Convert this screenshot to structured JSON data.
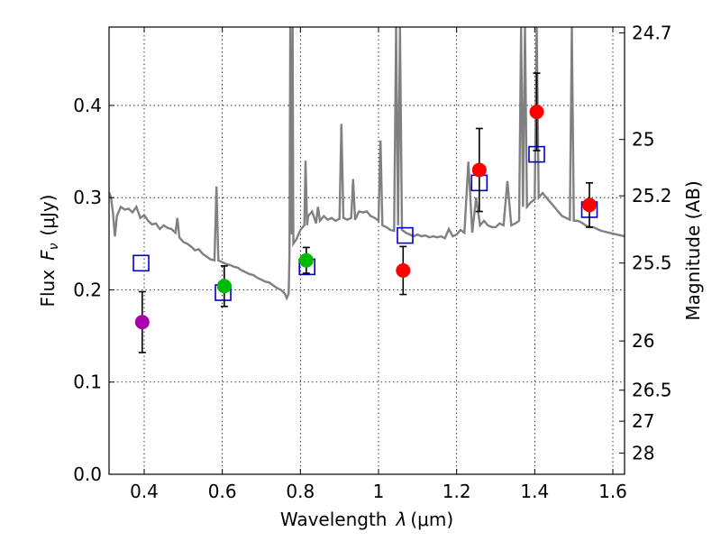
{
  "chart_data": {
    "type": "scatter",
    "title": "",
    "xlabel": {
      "text": "Wavelength",
      "symbol": "λ",
      "unit": "(μm)"
    },
    "ylabel": {
      "text": "Flux",
      "symbol": "F",
      "subscript": "ν",
      "unit": "(μJy)"
    },
    "ylabel_right": "Magnitude (AB)",
    "xlim": [
      0.31,
      1.63
    ],
    "ylim": [
      0.0,
      0.485
    ],
    "grid": true,
    "x_ticks": [
      {
        "value": 0.4,
        "label": "0.4"
      },
      {
        "value": 0.6,
        "label": "0.6"
      },
      {
        "value": 0.8,
        "label": "0.8"
      },
      {
        "value": 1.0,
        "label": "1"
      },
      {
        "value": 1.2,
        "label": "1.2"
      },
      {
        "value": 1.4,
        "label": "1.4"
      },
      {
        "value": 1.6,
        "label": "1.6"
      }
    ],
    "y_ticks": [
      {
        "value": 0.0,
        "label": "0.0"
      },
      {
        "value": 0.1,
        "label": "0.1"
      },
      {
        "value": 0.2,
        "label": "0.2"
      },
      {
        "value": 0.3,
        "label": "0.3"
      },
      {
        "value": 0.4,
        "label": "0.4"
      }
    ],
    "right_ticks": [
      {
        "value": 24.7,
        "label": "24.7"
      },
      {
        "value": 25,
        "label": "25"
      },
      {
        "value": 25.2,
        "label": "25.2"
      },
      {
        "value": 25.5,
        "label": "25.5"
      },
      {
        "value": 26,
        "label": "26"
      },
      {
        "value": 26.5,
        "label": "26.5"
      },
      {
        "value": 27,
        "label": "27"
      },
      {
        "value": 28,
        "label": "28"
      }
    ],
    "observed": [
      {
        "x": 0.395,
        "y": 0.165,
        "err": 0.033,
        "color": "#aa00aa"
      },
      {
        "x": 0.605,
        "y": 0.204,
        "err": 0.022,
        "color": "#00bb00"
      },
      {
        "x": 0.815,
        "y": 0.232,
        "err": 0.014,
        "color": "#00bb00"
      },
      {
        "x": 1.063,
        "y": 0.221,
        "err": 0.026,
        "color": "#ff0000"
      },
      {
        "x": 1.258,
        "y": 0.33,
        "err": 0.045,
        "color": "#ff0000"
      },
      {
        "x": 1.405,
        "y": 0.393,
        "err": 0.042,
        "color": "#ff0000"
      },
      {
        "x": 1.54,
        "y": 0.292,
        "err": 0.024,
        "color": "#ff0000"
      }
    ],
    "model_photometry": {
      "color": "#0000cc",
      "points": [
        {
          "x": 0.392,
          "y": 0.229
        },
        {
          "x": 0.602,
          "y": 0.197
        },
        {
          "x": 0.817,
          "y": 0.225
        },
        {
          "x": 1.068,
          "y": 0.259
        },
        {
          "x": 1.258,
          "y": 0.316
        },
        {
          "x": 1.405,
          "y": 0.347
        },
        {
          "x": 1.54,
          "y": 0.287
        }
      ]
    },
    "sed_model": {
      "color": "#808080",
      "points": [
        [
          0.31,
          0.306
        ],
        [
          0.315,
          0.3
        ],
        [
          0.32,
          0.284
        ],
        [
          0.325,
          0.258
        ],
        [
          0.33,
          0.28
        ],
        [
          0.34,
          0.29
        ],
        [
          0.35,
          0.287
        ],
        [
          0.36,
          0.288
        ],
        [
          0.37,
          0.284
        ],
        [
          0.38,
          0.29
        ],
        [
          0.39,
          0.278
        ],
        [
          0.4,
          0.281
        ],
        [
          0.41,
          0.275
        ],
        [
          0.42,
          0.271
        ],
        [
          0.43,
          0.272
        ],
        [
          0.44,
          0.266
        ],
        [
          0.45,
          0.27
        ],
        [
          0.46,
          0.267
        ],
        [
          0.47,
          0.266
        ],
        [
          0.48,
          0.262
        ],
        [
          0.485,
          0.278
        ],
        [
          0.49,
          0.257
        ],
        [
          0.5,
          0.252
        ],
        [
          0.51,
          0.25
        ],
        [
          0.52,
          0.247
        ],
        [
          0.53,
          0.243
        ],
        [
          0.54,
          0.244
        ],
        [
          0.55,
          0.239
        ],
        [
          0.56,
          0.236
        ],
        [
          0.57,
          0.233
        ],
        [
          0.58,
          0.232
        ],
        [
          0.585,
          0.312
        ],
        [
          0.59,
          0.232
        ],
        [
          0.6,
          0.23
        ],
        [
          0.61,
          0.228
        ],
        [
          0.62,
          0.227
        ],
        [
          0.63,
          0.225
        ],
        [
          0.64,
          0.224
        ],
        [
          0.65,
          0.221
        ],
        [
          0.66,
          0.219
        ],
        [
          0.67,
          0.217
        ],
        [
          0.68,
          0.216
        ],
        [
          0.69,
          0.213
        ],
        [
          0.7,
          0.211
        ],
        [
          0.71,
          0.209
        ],
        [
          0.72,
          0.208
        ],
        [
          0.73,
          0.205
        ],
        [
          0.74,
          0.202
        ],
        [
          0.75,
          0.2
        ],
        [
          0.76,
          0.196
        ],
        [
          0.765,
          0.191
        ],
        [
          0.77,
          0.196
        ],
        [
          0.772,
          0.24
        ],
        [
          0.774,
          0.485
        ],
        [
          0.776,
          0.3
        ],
        [
          0.778,
          0.26
        ],
        [
          0.78,
          0.485
        ],
        [
          0.782,
          0.25
        ],
        [
          0.79,
          0.255
        ],
        [
          0.8,
          0.265
        ],
        [
          0.81,
          0.27
        ],
        [
          0.813,
          0.34
        ],
        [
          0.817,
          0.27
        ],
        [
          0.82,
          0.28
        ],
        [
          0.83,
          0.285
        ],
        [
          0.84,
          0.272
        ],
        [
          0.845,
          0.29
        ],
        [
          0.85,
          0.275
        ],
        [
          0.86,
          0.28
        ],
        [
          0.87,
          0.276
        ],
        [
          0.88,
          0.278
        ],
        [
          0.89,
          0.275
        ],
        [
          0.9,
          0.277
        ],
        [
          0.905,
          0.38
        ],
        [
          0.91,
          0.278
        ],
        [
          0.92,
          0.276
        ],
        [
          0.93,
          0.278
        ],
        [
          0.935,
          0.32
        ],
        [
          0.94,
          0.276
        ],
        [
          0.95,
          0.285
        ],
        [
          0.96,
          0.284
        ],
        [
          0.97,
          0.285
        ],
        [
          0.98,
          0.28
        ],
        [
          0.99,
          0.278
        ],
        [
          1.0,
          0.275
        ],
        [
          1.005,
          0.362
        ],
        [
          1.01,
          0.27
        ],
        [
          1.02,
          0.268
        ],
        [
          1.03,
          0.265
        ],
        [
          1.04,
          0.264
        ],
        [
          1.045,
          0.485
        ],
        [
          1.05,
          0.27
        ],
        [
          1.055,
          0.485
        ],
        [
          1.06,
          0.265
        ],
        [
          1.07,
          0.262
        ],
        [
          1.08,
          0.26
        ],
        [
          1.09,
          0.258
        ],
        [
          1.1,
          0.26
        ],
        [
          1.11,
          0.258
        ],
        [
          1.12,
          0.259
        ],
        [
          1.13,
          0.257
        ],
        [
          1.14,
          0.258
        ],
        [
          1.15,
          0.257
        ],
        [
          1.16,
          0.258
        ],
        [
          1.17,
          0.256
        ],
        [
          1.18,
          0.266
        ],
        [
          1.19,
          0.258
        ],
        [
          1.2,
          0.26
        ],
        [
          1.21,
          0.265
        ],
        [
          1.22,
          0.262
        ],
        [
          1.23,
          0.339
        ],
        [
          1.24,
          0.262
        ],
        [
          1.25,
          0.3
        ],
        [
          1.26,
          0.27
        ],
        [
          1.27,
          0.275
        ],
        [
          1.28,
          0.27
        ],
        [
          1.29,
          0.268
        ],
        [
          1.3,
          0.268
        ],
        [
          1.31,
          0.272
        ],
        [
          1.32,
          0.27
        ],
        [
          1.33,
          0.318
        ],
        [
          1.34,
          0.27
        ],
        [
          1.35,
          0.272
        ],
        [
          1.36,
          0.275
        ],
        [
          1.365,
          0.485
        ],
        [
          1.37,
          0.29
        ],
        [
          1.375,
          0.485
        ],
        [
          1.38,
          0.29
        ],
        [
          1.39,
          0.295
        ],
        [
          1.4,
          0.298
        ],
        [
          1.405,
          0.485
        ],
        [
          1.41,
          0.3
        ],
        [
          1.42,
          0.305
        ],
        [
          1.43,
          0.3
        ],
        [
          1.44,
          0.295
        ],
        [
          1.45,
          0.29
        ],
        [
          1.46,
          0.285
        ],
        [
          1.47,
          0.28
        ],
        [
          1.48,
          0.278
        ],
        [
          1.49,
          0.276
        ],
        [
          1.495,
          0.485
        ],
        [
          1.5,
          0.275
        ],
        [
          1.51,
          0.275
        ],
        [
          1.52,
          0.273
        ],
        [
          1.53,
          0.27
        ],
        [
          1.54,
          0.268
        ],
        [
          1.55,
          0.268
        ],
        [
          1.56,
          0.266
        ],
        [
          1.57,
          0.264
        ],
        [
          1.58,
          0.263
        ],
        [
          1.59,
          0.262
        ],
        [
          1.6,
          0.261
        ],
        [
          1.61,
          0.26
        ],
        [
          1.62,
          0.259
        ],
        [
          1.63,
          0.258
        ]
      ]
    }
  }
}
